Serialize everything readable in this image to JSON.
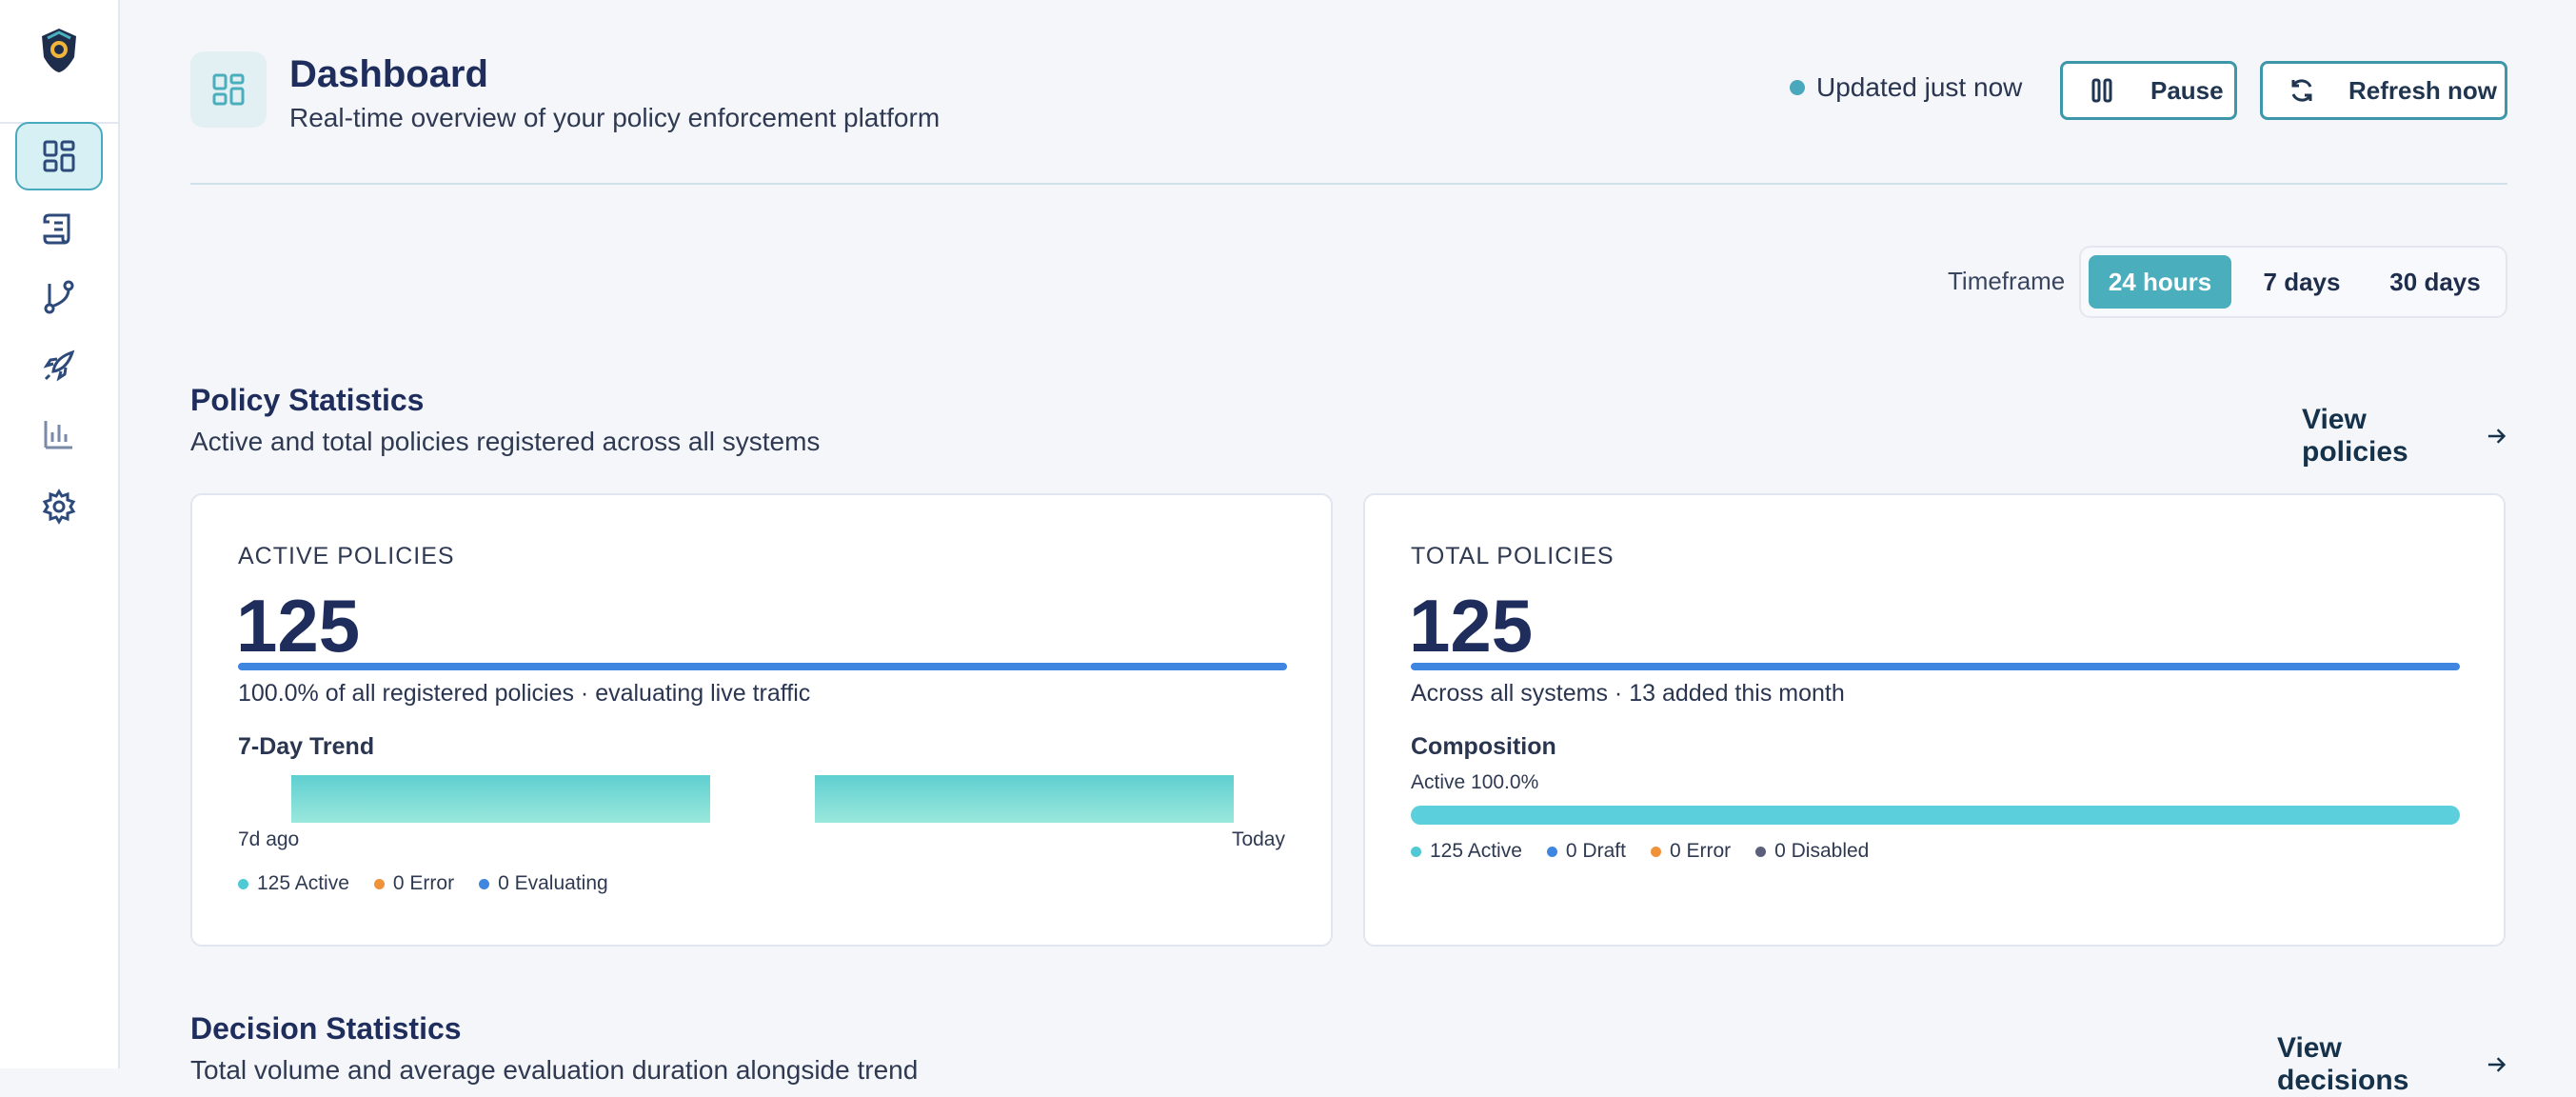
{
  "sidebar": {
    "items": [
      {
        "icon": "dashboard-icon",
        "active": true
      },
      {
        "icon": "scroll-icon",
        "active": false
      },
      {
        "icon": "git-branch-icon",
        "active": false
      },
      {
        "icon": "rocket-icon",
        "active": false
      },
      {
        "icon": "bar-chart-icon",
        "active": false
      },
      {
        "icon": "gear-icon",
        "active": false
      }
    ]
  },
  "header": {
    "title": "Dashboard",
    "subtitle": "Real-time overview of your policy enforcement platform",
    "updated": "Updated just now",
    "pause_label": "Pause",
    "refresh_label": "Refresh now"
  },
  "timeframe": {
    "label": "Timeframe",
    "options": [
      "24 hours",
      "7 days",
      "30 days"
    ],
    "selected": "24 hours"
  },
  "policy_section": {
    "title": "Policy Statistics",
    "subtitle": "Active and total policies registered across all systems",
    "link": "View policies"
  },
  "active_card": {
    "label": "ACTIVE POLICIES",
    "value": "125",
    "bar_fraction": 1.0,
    "description": "100.0% of all registered policies · evaluating live traffic",
    "trend_title": "7-Day Trend",
    "trend_start": "7d ago",
    "trend_end": "Today",
    "legend": [
      "125 Active",
      "0 Error",
      "0 Evaluating"
    ]
  },
  "total_card": {
    "label": "TOTAL POLICIES",
    "value": "125",
    "bar_fraction": 1.0,
    "description": "Across all systems · 13 added this month",
    "composition_title": "Composition",
    "composition_sub": "Active 100.0%",
    "legend": [
      "125 Active",
      "0 Draft",
      "0 Error",
      "0 Disabled"
    ]
  },
  "decision_section": {
    "title": "Decision Statistics",
    "subtitle": "Total volume and average evaluation duration alongside trend",
    "link": "View decisions"
  },
  "colors": {
    "accent": "#4aaebd",
    "active": "#4fc9d3",
    "error": "#f0923a",
    "evaluating": "#3f86e0",
    "draft": "#3f86e0",
    "disabled": "#5b5f7a"
  }
}
